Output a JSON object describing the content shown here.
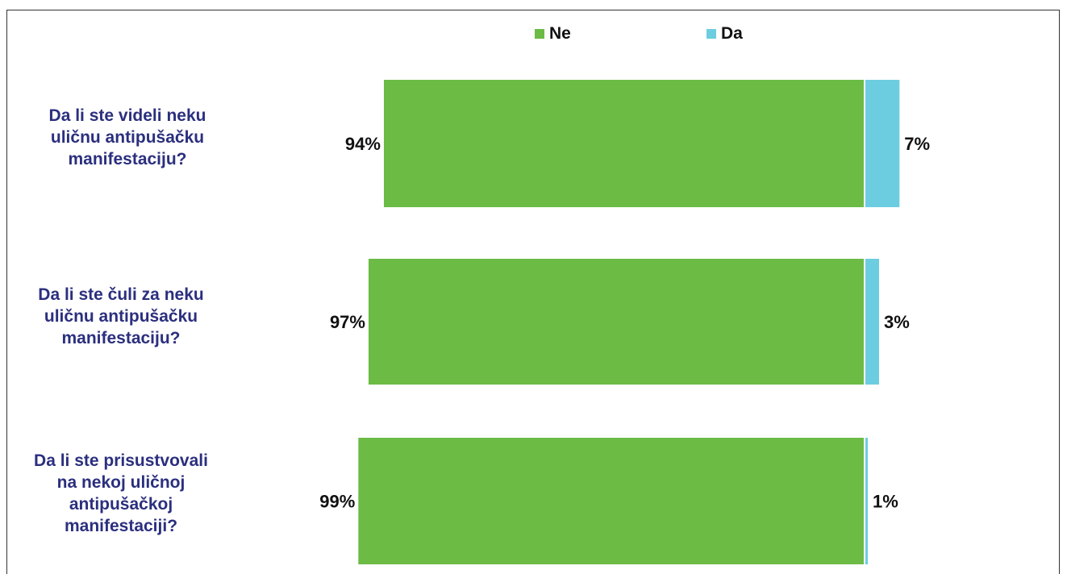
{
  "chart_data": {
    "type": "bar",
    "orientation": "horizontal",
    "stacked": true,
    "categories": [
      "Da li ste videli neku\nuličnu antipušačku\nmanifestaciju?",
      "Da li ste čuli za neku\nuličnu antipušačku\nmanifestaciju?",
      "Da li ste prisustvovali\nna nekoj uličnoj\nantipušačkoj\nmanifestaciji?"
    ],
    "series": [
      {
        "name": "Ne",
        "values": [
          94,
          97,
          99
        ],
        "labels": [
          "94%",
          "97%",
          "99%"
        ],
        "color": "#6bbb45"
      },
      {
        "name": "Da",
        "values": [
          7,
          3,
          1
        ],
        "labels": [
          "7%",
          "3%",
          "1%"
        ],
        "color": "#6dcde0"
      }
    ],
    "legend_position": "top",
    "grid": false
  }
}
